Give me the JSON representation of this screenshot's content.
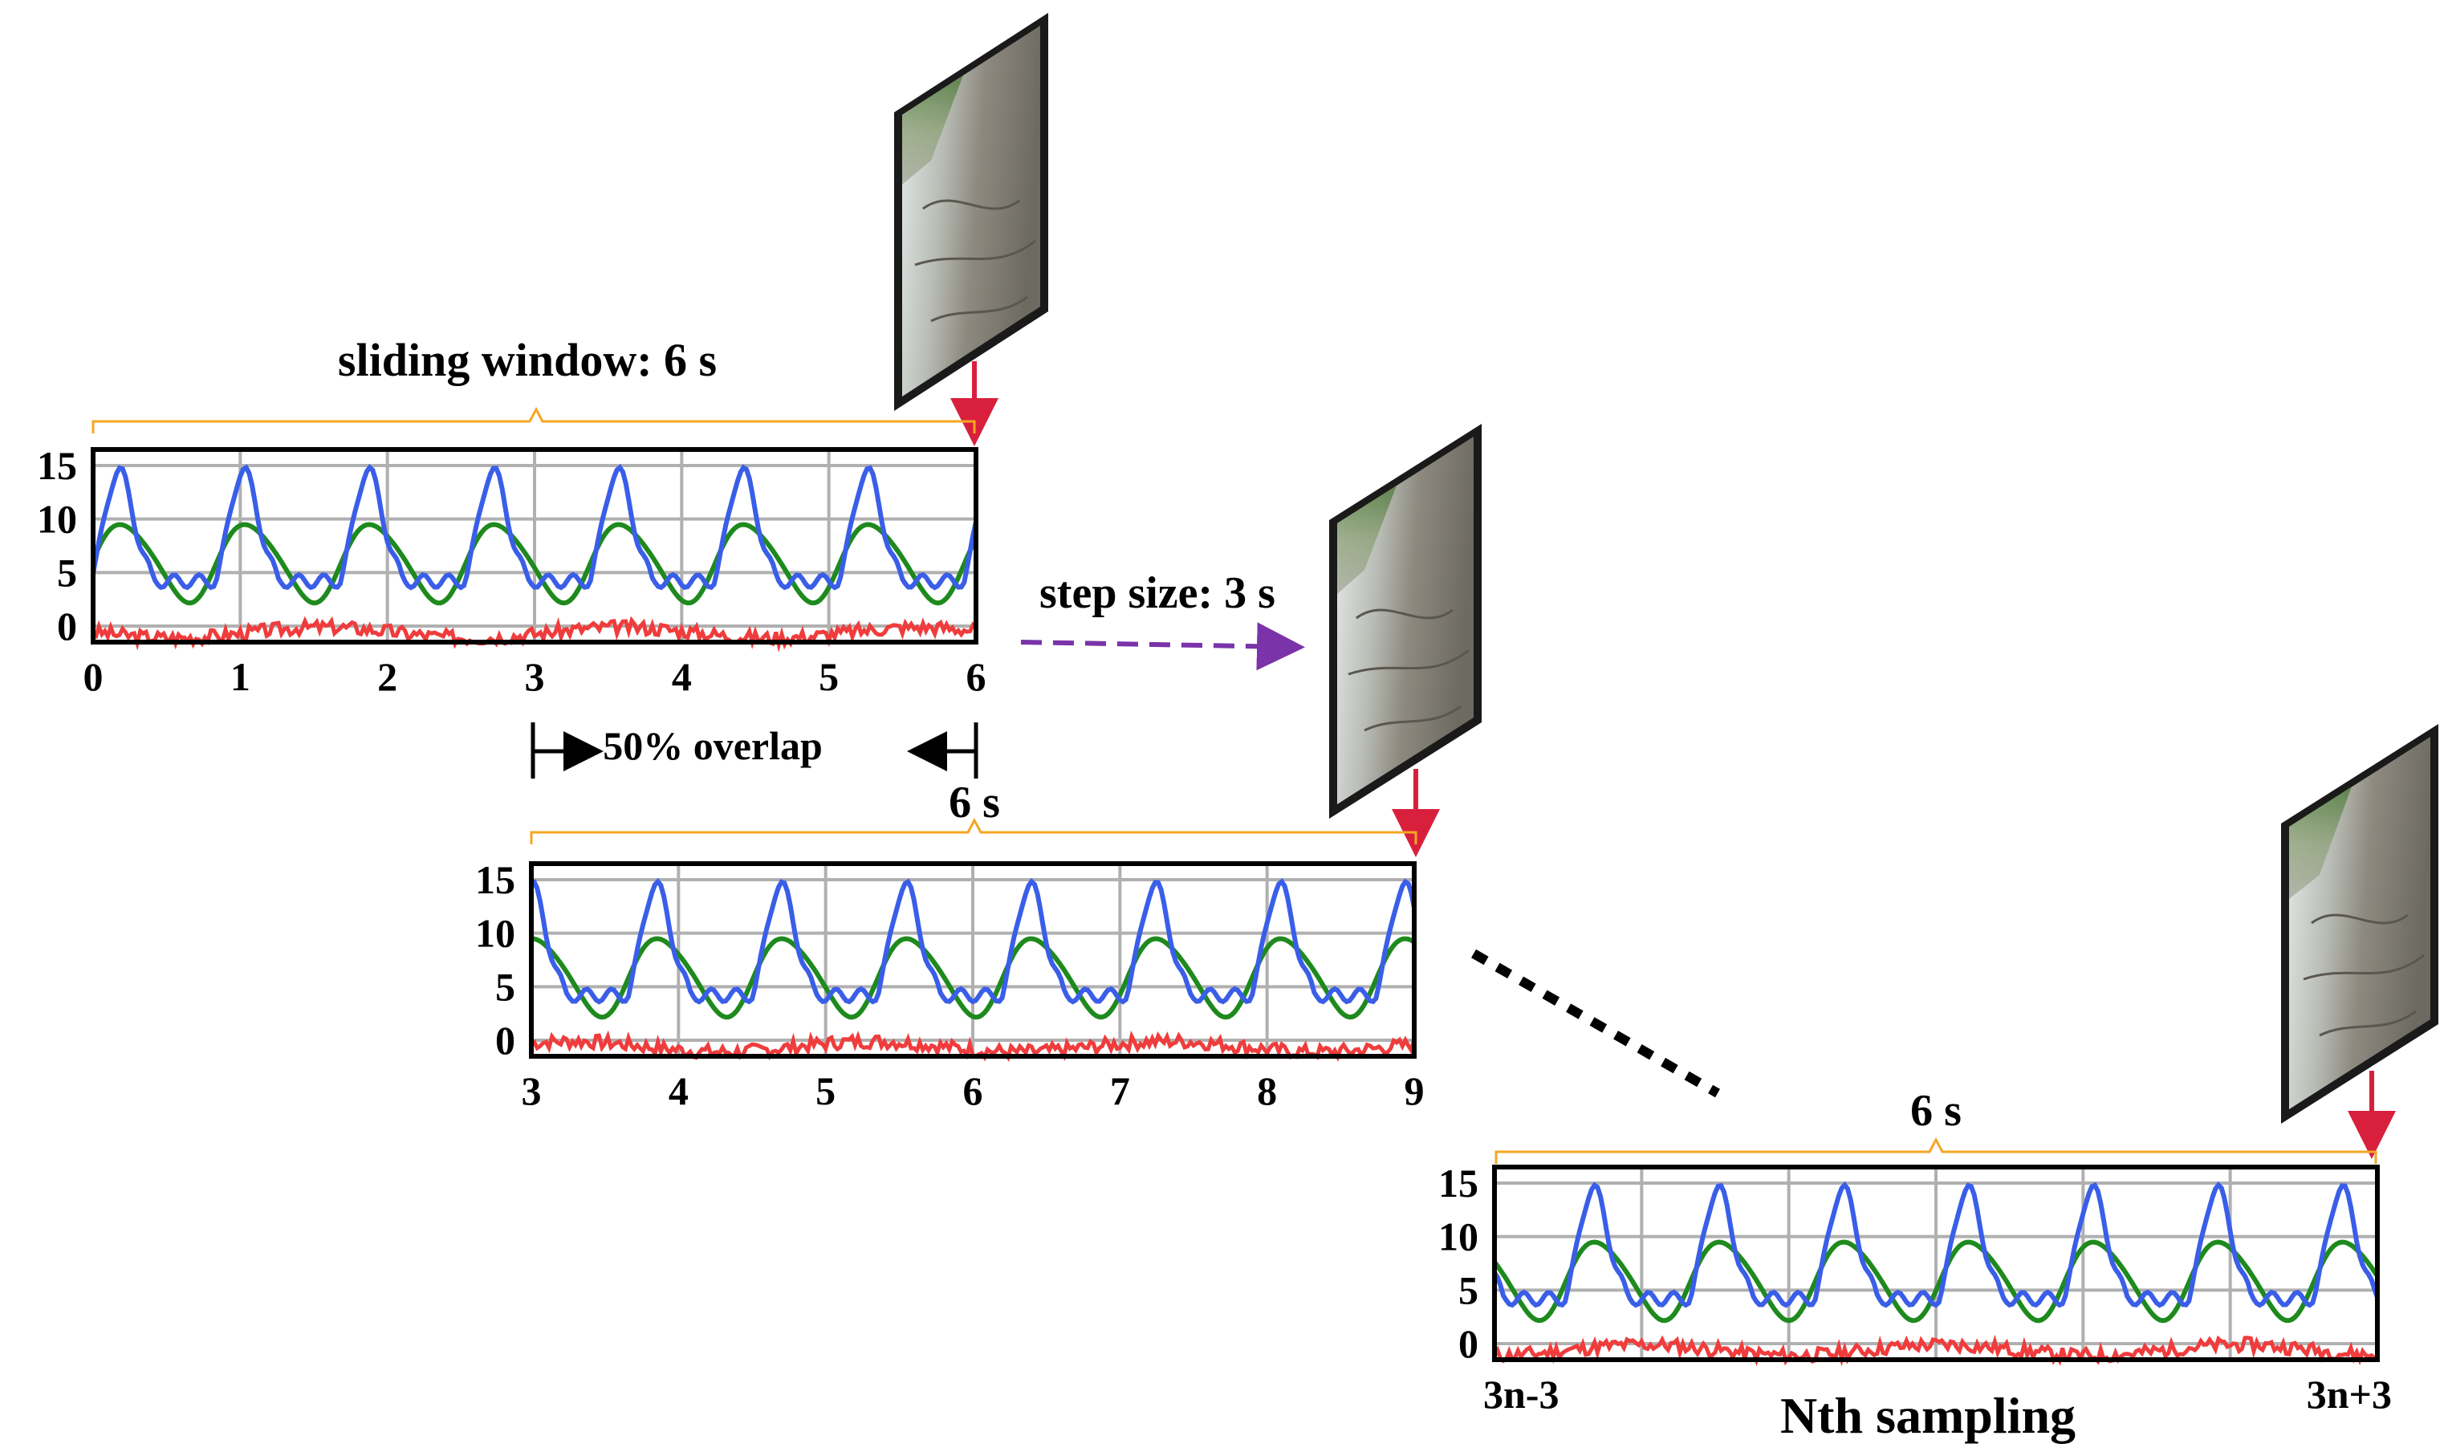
{
  "labels": {
    "sliding_window": "sliding window: 6 s",
    "step_size": "step size: 3 s",
    "overlap": "50% overlap",
    "window2": "6 s",
    "window3": "6 s",
    "nth_sampling": "Nth sampling"
  },
  "colors": {
    "blue": "#3a5ee8",
    "green": "#1e8a1e",
    "red": "#f03c3c",
    "arrow_red": "#d8203c",
    "step_arrow": "#7a33a8",
    "brace": "#f5a623",
    "grid": "#b0b0b0"
  },
  "panels": [
    {
      "id": "window-1",
      "x_ticks": [
        "0",
        "1",
        "2",
        "3",
        "4",
        "5",
        "6"
      ],
      "y_ticks": [
        "15",
        "10",
        "5",
        "0"
      ],
      "ylim": [
        -1.5,
        16.5
      ]
    },
    {
      "id": "window-2",
      "x_ticks": [
        "3",
        "4",
        "5",
        "6",
        "7",
        "8",
        "9"
      ],
      "y_ticks": [
        "15",
        "10",
        "5",
        "0"
      ],
      "ylim": [
        -1.5,
        16.5
      ]
    },
    {
      "id": "window-n",
      "x_ticks": [
        "3n-3",
        "",
        "",
        "",
        "",
        "",
        "3n+3"
      ],
      "y_ticks": [
        "15",
        "10",
        "5",
        "0"
      ],
      "ylim": [
        -1.5,
        16.5
      ]
    }
  ]
}
